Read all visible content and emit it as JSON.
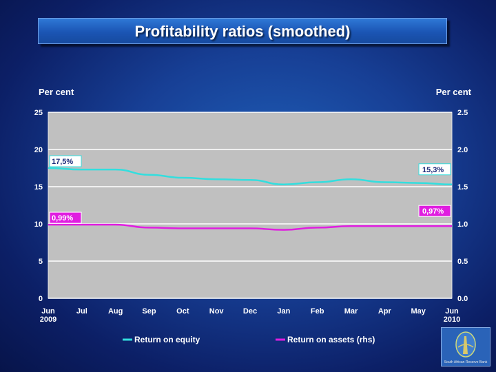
{
  "title": "Profitability ratios (smoothed)",
  "chart_data": {
    "type": "line",
    "x": [
      "Jun 2009",
      "Jul",
      "Aug",
      "Sep",
      "Oct",
      "Nov",
      "Dec",
      "Jan",
      "Feb",
      "Mar",
      "Apr",
      "May",
      "Jun 2010"
    ],
    "x_tick_labels": [
      [
        "Jun",
        "2009"
      ],
      [
        "Jul"
      ],
      [
        "Aug"
      ],
      [
        "Sep"
      ],
      [
        "Oct"
      ],
      [
        "Nov"
      ],
      [
        "Dec"
      ],
      [
        "Jan"
      ],
      [
        "Feb"
      ],
      [
        "Mar"
      ],
      [
        "Apr"
      ],
      [
        "May"
      ],
      [
        "Jun",
        "2010"
      ]
    ],
    "ylabel_left": "Per cent",
    "ylabel_right": "Per cent",
    "ylim_left": [
      0,
      25
    ],
    "ylim_right": [
      0.0,
      2.5
    ],
    "yticks_left": [
      "0",
      "5",
      "10",
      "15",
      "20",
      "25"
    ],
    "yticks_right": [
      "0.0",
      "0.5",
      "1.0",
      "1.5",
      "2.0",
      "2.5"
    ],
    "grid": "horizontal",
    "legend_position": "bottom",
    "series": [
      {
        "name": "Return on equity",
        "axis": "left",
        "color": "#33dede",
        "values": [
          17.5,
          17.3,
          17.3,
          16.6,
          16.2,
          16.0,
          15.9,
          15.3,
          15.6,
          16.0,
          15.6,
          15.5,
          15.3
        ],
        "start_label": "17,5%",
        "end_label": "15,3%"
      },
      {
        "name": "Return on assets (rhs)",
        "axis": "right",
        "color": "#e01ee0",
        "values": [
          0.99,
          0.99,
          0.99,
          0.95,
          0.94,
          0.94,
          0.94,
          0.92,
          0.95,
          0.97,
          0.97,
          0.97,
          0.97
        ],
        "start_label": "0,99%",
        "end_label": "0,97%"
      }
    ]
  },
  "logo": {
    "caption": "South African Reserve Bank"
  }
}
